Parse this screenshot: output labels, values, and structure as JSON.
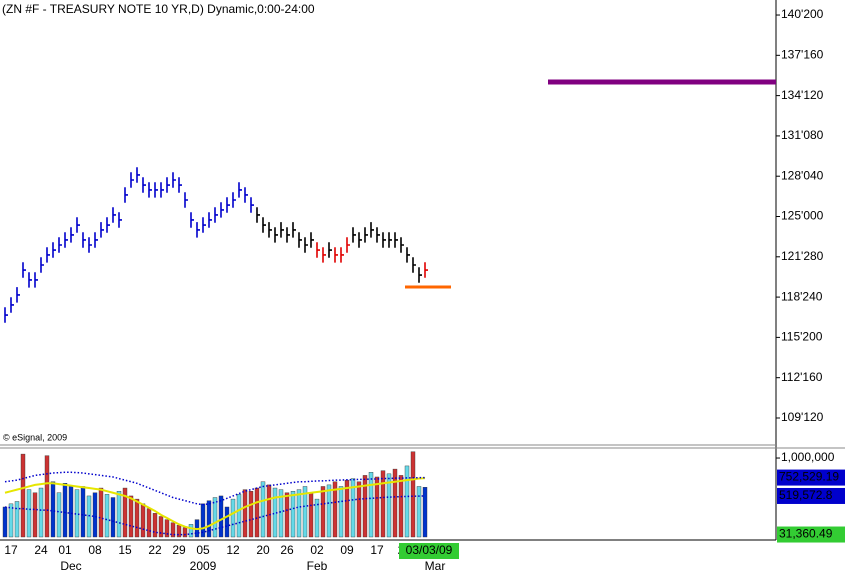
{
  "chart_data": [
    {
      "type": "ohlc",
      "title": "(ZN #F - TREASURY NOTE 10 YR,D) Dynamic,0:00-24:00",
      "copyright": "© eSignal, 2009",
      "categories": [
        null,
        "17",
        null,
        null,
        null,
        null,
        "24",
        null,
        null,
        null,
        "01",
        null,
        null,
        null,
        null,
        "08",
        null,
        null,
        null,
        null,
        "15",
        null,
        null,
        null,
        null,
        "22",
        null,
        null,
        null,
        "29",
        null,
        null,
        null,
        "05",
        null,
        null,
        null,
        null,
        "12",
        null,
        null,
        null,
        null,
        "20",
        null,
        null,
        null,
        "26",
        null,
        null,
        null,
        null,
        "02",
        null,
        null,
        null,
        null,
        "09",
        null,
        null,
        null,
        null,
        "17",
        null,
        null,
        null,
        "2",
        null,
        null,
        null,
        "03/03/09"
      ],
      "months": [
        null,
        null,
        null,
        null,
        null,
        null,
        null,
        null,
        null,
        null,
        null,
        "Dec",
        null,
        null,
        null,
        null,
        null,
        null,
        null,
        null,
        null,
        null,
        null,
        null,
        null,
        null,
        null,
        null,
        null,
        null,
        null,
        null,
        null,
        "2009",
        null,
        null,
        null,
        null,
        null,
        null,
        null,
        null,
        null,
        null,
        null,
        null,
        null,
        null,
        null,
        null,
        null,
        null,
        "Feb",
        null,
        null,
        null,
        null,
        null,
        null,
        null,
        null,
        null,
        null,
        null,
        null,
        null,
        null,
        null,
        null,
        null,
        "Mar"
      ],
      "high": [
        117.96,
        118.74,
        119.52,
        121.45,
        120.68,
        120.68,
        121.84,
        122.62,
        123.0,
        123.39,
        123.78,
        124.17,
        124.94,
        123.78,
        123.39,
        123.78,
        124.56,
        124.94,
        125.72,
        125.33,
        127.27,
        128.43,
        128.82,
        128.04,
        127.66,
        127.66,
        127.66,
        128.04,
        128.43,
        128.04,
        126.88,
        125.33,
        124.56,
        124.94,
        125.33,
        125.72,
        126.11,
        126.49,
        126.88,
        127.66,
        127.27,
        126.49,
        125.72,
        124.94,
        124.56,
        124.17,
        124.56,
        124.17,
        124.56,
        123.78,
        123.39,
        123.78,
        123.0,
        122.62,
        123.0,
        122.62,
        122.62,
        123.39,
        124.17,
        123.78,
        124.17,
        124.56,
        124.17,
        123.78,
        123.78,
        123.78,
        123.39,
        122.62,
        121.84,
        121.06,
        121.45
      ],
      "low": [
        116.76,
        117.54,
        118.32,
        120.25,
        119.48,
        119.48,
        120.64,
        121.42,
        121.8,
        122.19,
        122.58,
        122.97,
        123.74,
        122.58,
        122.19,
        122.58,
        123.36,
        123.74,
        124.52,
        124.13,
        126.07,
        127.23,
        127.62,
        126.84,
        126.46,
        126.46,
        126.46,
        126.84,
        127.23,
        126.84,
        125.68,
        124.13,
        123.36,
        123.74,
        124.13,
        124.52,
        124.91,
        125.29,
        125.68,
        126.46,
        126.07,
        125.29,
        124.52,
        123.74,
        123.36,
        122.97,
        123.36,
        122.97,
        123.36,
        122.58,
        122.19,
        122.58,
        121.8,
        121.42,
        121.8,
        121.42,
        121.42,
        122.19,
        122.97,
        122.58,
        122.97,
        123.36,
        122.97,
        122.58,
        122.58,
        122.58,
        122.19,
        121.42,
        120.64,
        119.86,
        120.25
      ],
      "close": [
        117.36,
        118.14,
        118.92,
        120.85,
        120.08,
        120.08,
        121.24,
        122.02,
        122.4,
        122.79,
        123.18,
        123.57,
        124.34,
        123.18,
        122.79,
        123.18,
        123.96,
        124.34,
        125.12,
        124.73,
        126.67,
        127.83,
        128.22,
        127.44,
        127.06,
        127.06,
        127.06,
        127.44,
        127.83,
        127.44,
        126.28,
        124.73,
        123.96,
        124.34,
        124.73,
        125.12,
        125.51,
        125.89,
        126.28,
        127.06,
        126.67,
        125.89,
        125.12,
        124.34,
        123.96,
        123.57,
        123.96,
        123.57,
        123.96,
        123.18,
        122.79,
        123.18,
        122.4,
        122.02,
        122.4,
        122.02,
        122.02,
        122.79,
        123.57,
        123.18,
        123.57,
        123.96,
        123.57,
        123.18,
        123.18,
        123.18,
        122.79,
        122.02,
        121.24,
        120.46,
        120.85
      ],
      "bar_colors": [
        "#0000cc",
        "#0000cc",
        "#0000cc",
        "#0000cc",
        "#0000cc",
        "#0000cc",
        "#0000cc",
        "#0000cc",
        "#0000cc",
        "#0000cc",
        "#0000cc",
        "#0000cc",
        "#0000cc",
        "#0000cc",
        "#0000cc",
        "#0000cc",
        "#0000cc",
        "#0000cc",
        "#0000cc",
        "#0000cc",
        "#0000cc",
        "#0000cc",
        "#0000cc",
        "#0000cc",
        "#0000cc",
        "#0000cc",
        "#0000cc",
        "#0000cc",
        "#0000cc",
        "#0000cc",
        "#0000cc",
        "#0000cc",
        "#0000cc",
        "#0000cc",
        "#0000cc",
        "#0000cc",
        "#0000cc",
        "#0000cc",
        "#0000cc",
        "#0000cc",
        "#0000cc",
        "#0000cc",
        "#000000",
        "#000000",
        "#000000",
        "#000000",
        "#000000",
        "#000000",
        "#000000",
        "#000000",
        "#000000",
        "#000000",
        "#e00000",
        "#e00000",
        "#000000",
        "#e00000",
        "#e00000",
        "#e00000",
        "#000000",
        "#000000",
        "#000000",
        "#000000",
        "#000000",
        "#000000",
        "#000000",
        "#000000",
        "#000000",
        "#000000",
        "#000000",
        "#000000",
        "#e00000"
      ],
      "ylim": [
        107.28,
        141.79
      ],
      "yticks": [
        {
          "value": 140.625,
          "label": "140'200"
        },
        {
          "value": 137.5,
          "label": "137'160"
        },
        {
          "value": 134.375,
          "label": "134'120"
        },
        {
          "value": 131.25,
          "label": "131'080"
        },
        {
          "value": 128.125,
          "label": "128'040"
        },
        {
          "value": 125,
          "label": "125'000"
        },
        {
          "value": 121.875,
          "label": "121'280"
        },
        {
          "value": 118.75,
          "label": "118'240"
        },
        {
          "value": 115.625,
          "label": "115'200"
        },
        {
          "value": 112.5,
          "label": "112'160"
        },
        {
          "value": 109.375,
          "label": "109'120"
        }
      ],
      "levels": [
        {
          "value": 135.43,
          "color": "#800080"
        },
        {
          "value": 119.53,
          "color": "#ff6600"
        }
      ]
    },
    {
      "type": "volume",
      "values": [
        380000,
        420000,
        450000,
        1050000,
        600000,
        560000,
        620000,
        1030000,
        700000,
        560000,
        680000,
        650000,
        600000,
        640000,
        520000,
        560000,
        620000,
        540000,
        500000,
        580000,
        620000,
        520000,
        480000,
        420000,
        360000,
        300000,
        260000,
        220000,
        180000,
        150000,
        120000,
        160000,
        220000,
        420000,
        460000,
        500000,
        520000,
        380000,
        480000,
        540000,
        600000,
        580000,
        620000,
        700000,
        660000,
        620000,
        600000,
        560000,
        580000,
        600000,
        640000,
        560000,
        480000,
        640000,
        660000,
        700000,
        640000,
        720000,
        740000,
        700000,
        780000,
        820000,
        760000,
        840000,
        800000,
        860000,
        780000,
        900000,
        1080000,
        640000,
        630000
      ],
      "colors": [
        "#0033cc",
        "#66d9e8",
        "#66d9e8",
        "#cc3333",
        "#66d9e8",
        "#cc3333",
        "#66d9e8",
        "#cc3333",
        "#0033cc",
        "#66d9e8",
        "#0033cc",
        "#0033cc",
        "#66d9e8",
        "#0033cc",
        "#66d9e8",
        "#0033cc",
        "#cc3333",
        "#66d9e8",
        "#0033cc",
        "#66d9e8",
        "#cc3333",
        "#cc3333",
        "#cc3333",
        "#cc3333",
        "#cc3333",
        "#cc3333",
        "#cc3333",
        "#cc3333",
        "#cc3333",
        "#cc3333",
        "#cc3333",
        "#66d9e8",
        "#0033cc",
        "#0033cc",
        "#0033cc",
        "#66d9e8",
        "#0033cc",
        "#0033cc",
        "#66d9e8",
        "#66d9e8",
        "#cc3333",
        "#cc3333",
        "#cc3333",
        "#66d9e8",
        "#cc3333",
        "#66d9e8",
        "#66d9e8",
        "#cc3333",
        "#66d9e8",
        "#66d9e8",
        "#66d9e8",
        "#cc3333",
        "#66d9e8",
        "#cc3333",
        "#66d9e8",
        "#cc3333",
        "#66d9e8",
        "#cc3333",
        "#66d9e8",
        "#cc3333",
        "#cc3333",
        "#66d9e8",
        "#cc3333",
        "#cc3333",
        "#66d9e8",
        "#cc3333",
        "#cc3333",
        "#66d9e8",
        "#cc3333",
        "#66d9e8",
        "#0033cc"
      ],
      "series": [
        {
          "color": "#e6e600",
          "dashed": false,
          "values": [
            560000,
            580000,
            600000,
            620000,
            640000,
            660000,
            670000,
            680000,
            680000,
            670000,
            660000,
            650000,
            640000,
            630000,
            620000,
            610000,
            600000,
            580000,
            560000,
            540000,
            520000,
            490000,
            450000,
            410000,
            370000,
            330000,
            280000,
            240000,
            200000,
            160000,
            130000,
            110000,
            100000,
            110000,
            140000,
            180000,
            220000,
            260000,
            300000,
            340000,
            380000,
            410000,
            440000,
            460000,
            480000,
            500000,
            510000,
            520000,
            530000,
            540000,
            550000,
            560000,
            570000,
            580000,
            590000,
            600000,
            610000,
            620000,
            630000,
            640000,
            650000,
            660000,
            670000,
            680000,
            690000,
            700000,
            710000,
            720000,
            730000,
            740000,
            745000
          ]
        },
        {
          "color": "#0000cc",
          "dashed": true,
          "values": [
            700000,
            710000,
            720000,
            740000,
            760000,
            780000,
            790000,
            800000,
            810000,
            815000,
            820000,
            820000,
            815000,
            810000,
            800000,
            790000,
            780000,
            770000,
            760000,
            740000,
            720000,
            700000,
            680000,
            650000,
            620000,
            590000,
            560000,
            530000,
            500000,
            480000,
            460000,
            440000,
            420000,
            410000,
            420000,
            440000,
            460000,
            490000,
            520000,
            550000,
            580000,
            600000,
            620000,
            640000,
            650000,
            660000,
            670000,
            680000,
            690000,
            700000,
            700000,
            705000,
            710000,
            710000,
            715000,
            720000,
            720000,
            725000,
            725000,
            730000,
            730000,
            735000,
            735000,
            740000,
            740000,
            745000,
            745000,
            748000,
            750000,
            751000,
            752529.19
          ]
        },
        {
          "color": "#0000cc",
          "dashed": true,
          "values": [
            380000,
            370000,
            360000,
            360000,
            350000,
            350000,
            340000,
            340000,
            330000,
            320000,
            310000,
            300000,
            290000,
            280000,
            270000,
            260000,
            240000,
            220000,
            200000,
            180000,
            160000,
            140000,
            120000,
            100000,
            80000,
            60000,
            50000,
            40000,
            30000,
            30000,
            30000,
            40000,
            50000,
            60000,
            80000,
            100000,
            120000,
            140000,
            160000,
            180000,
            200000,
            220000,
            240000,
            260000,
            280000,
            300000,
            320000,
            340000,
            360000,
            380000,
            390000,
            400000,
            410000,
            420000,
            430000,
            440000,
            450000,
            460000,
            470000,
            480000,
            485000,
            490000,
            495000,
            500000,
            505000,
            508000,
            511000,
            514000,
            516000,
            518000,
            519572.8
          ]
        }
      ],
      "ylim": [
        -38000,
        1127000
      ],
      "yticks": [
        {
          "value": 1000000,
          "label": "1,000,000"
        }
      ],
      "readouts": [
        {
          "value": 752529.19,
          "label": "752,529.19",
          "color": "#0000cc",
          "text_color": "#ffffff"
        },
        {
          "value": 519572.8,
          "label": "519,572.8",
          "color": "#0000cc",
          "text_color": "#ffffff"
        },
        {
          "value": 31360.49,
          "label": "31,360.49",
          "color": "#33cc33",
          "text_color": "#000000"
        }
      ]
    }
  ]
}
